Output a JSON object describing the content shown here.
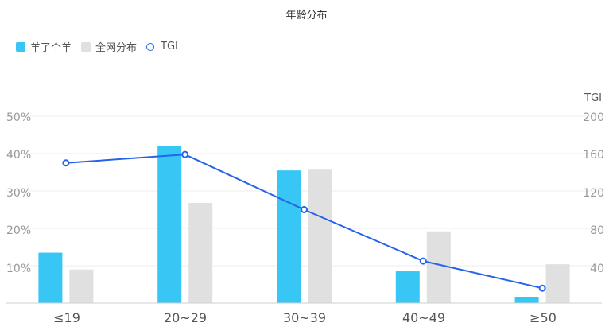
{
  "chart_data": {
    "type": "bar",
    "title": "年龄分布",
    "categories": [
      "≤19",
      "20~29",
      "30~39",
      "40~49",
      "≥50"
    ],
    "series": [
      {
        "name": "羊了个羊",
        "type": "bar",
        "axis": "left",
        "color": "#38c6f4",
        "values": [
          13.5,
          42.0,
          35.5,
          8.5,
          1.7
        ]
      },
      {
        "name": "全网分布",
        "type": "bar",
        "axis": "left",
        "color": "#e0e0e0",
        "values": [
          9.0,
          26.8,
          35.7,
          19.2,
          10.4
        ]
      },
      {
        "name": "TGI",
        "type": "line",
        "axis": "right",
        "color": "#2563eb",
        "values": [
          150,
          159,
          100,
          45,
          16
        ]
      }
    ],
    "y_left": {
      "ticks": [
        "50%",
        "40%",
        "30%",
        "20%",
        "10%"
      ],
      "range": [
        0,
        50
      ]
    },
    "y_right": {
      "label": "TGI",
      "ticks": [
        "200",
        "160",
        "120",
        "80",
        "40"
      ],
      "range": [
        0,
        200
      ]
    },
    "legend_position": "top-left",
    "grid": true
  }
}
